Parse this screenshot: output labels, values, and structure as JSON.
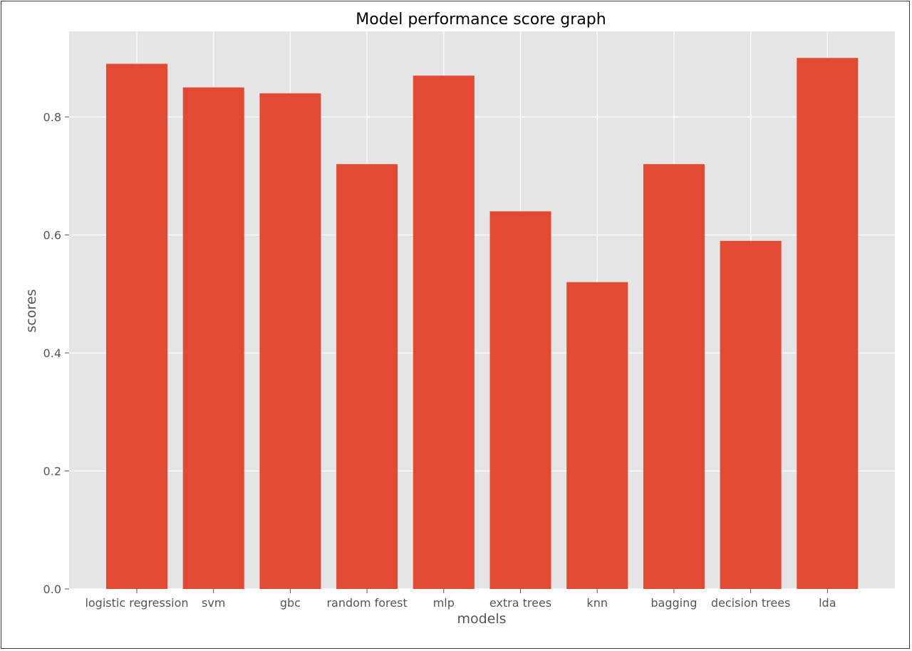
{
  "chart_data": {
    "type": "bar",
    "title": "Model performance score graph",
    "xlabel": "models",
    "ylabel": "scores",
    "categories": [
      "logistic regression",
      "svm",
      "gbc",
      "random forest",
      "mlp",
      "extra trees",
      "knn",
      "bagging",
      "decision trees",
      "lda"
    ],
    "values": [
      0.89,
      0.85,
      0.84,
      0.72,
      0.87,
      0.64,
      0.52,
      0.72,
      0.59,
      0.9
    ],
    "ylim": [
      0,
      0.945
    ],
    "yticks": [
      "0.0",
      "0.2",
      "0.4",
      "0.6",
      "0.8"
    ],
    "grid": true,
    "style": "ggplot",
    "colors": {
      "bar": "#E24A33",
      "plot_background": "#E5E5E5",
      "grid": "#FFFFFF",
      "text": "#555555"
    }
  }
}
